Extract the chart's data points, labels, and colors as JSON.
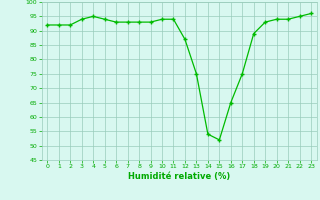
{
  "x": [
    0,
    1,
    2,
    3,
    4,
    5,
    6,
    7,
    8,
    9,
    10,
    11,
    12,
    13,
    14,
    15,
    16,
    17,
    18,
    19,
    20,
    21,
    22,
    23
  ],
  "y": [
    92,
    92,
    92,
    94,
    95,
    94,
    93,
    93,
    93,
    93,
    94,
    94,
    87,
    75,
    54,
    52,
    65,
    75,
    89,
    93,
    94,
    94,
    95,
    96
  ],
  "xlabel": "Humidité relative (%)",
  "ylim": [
    45,
    100
  ],
  "yticks": [
    45,
    50,
    55,
    60,
    65,
    70,
    75,
    80,
    85,
    90,
    95,
    100
  ],
  "xticks": [
    0,
    1,
    2,
    3,
    4,
    5,
    6,
    7,
    8,
    9,
    10,
    11,
    12,
    13,
    14,
    15,
    16,
    17,
    18,
    19,
    20,
    21,
    22,
    23
  ],
  "line_color": "#00bb00",
  "marker": "+",
  "bg_color": "#d8f8f0",
  "grid_color": "#99ccbb",
  "tick_color": "#00aa00",
  "xlabel_color": "#00aa00"
}
